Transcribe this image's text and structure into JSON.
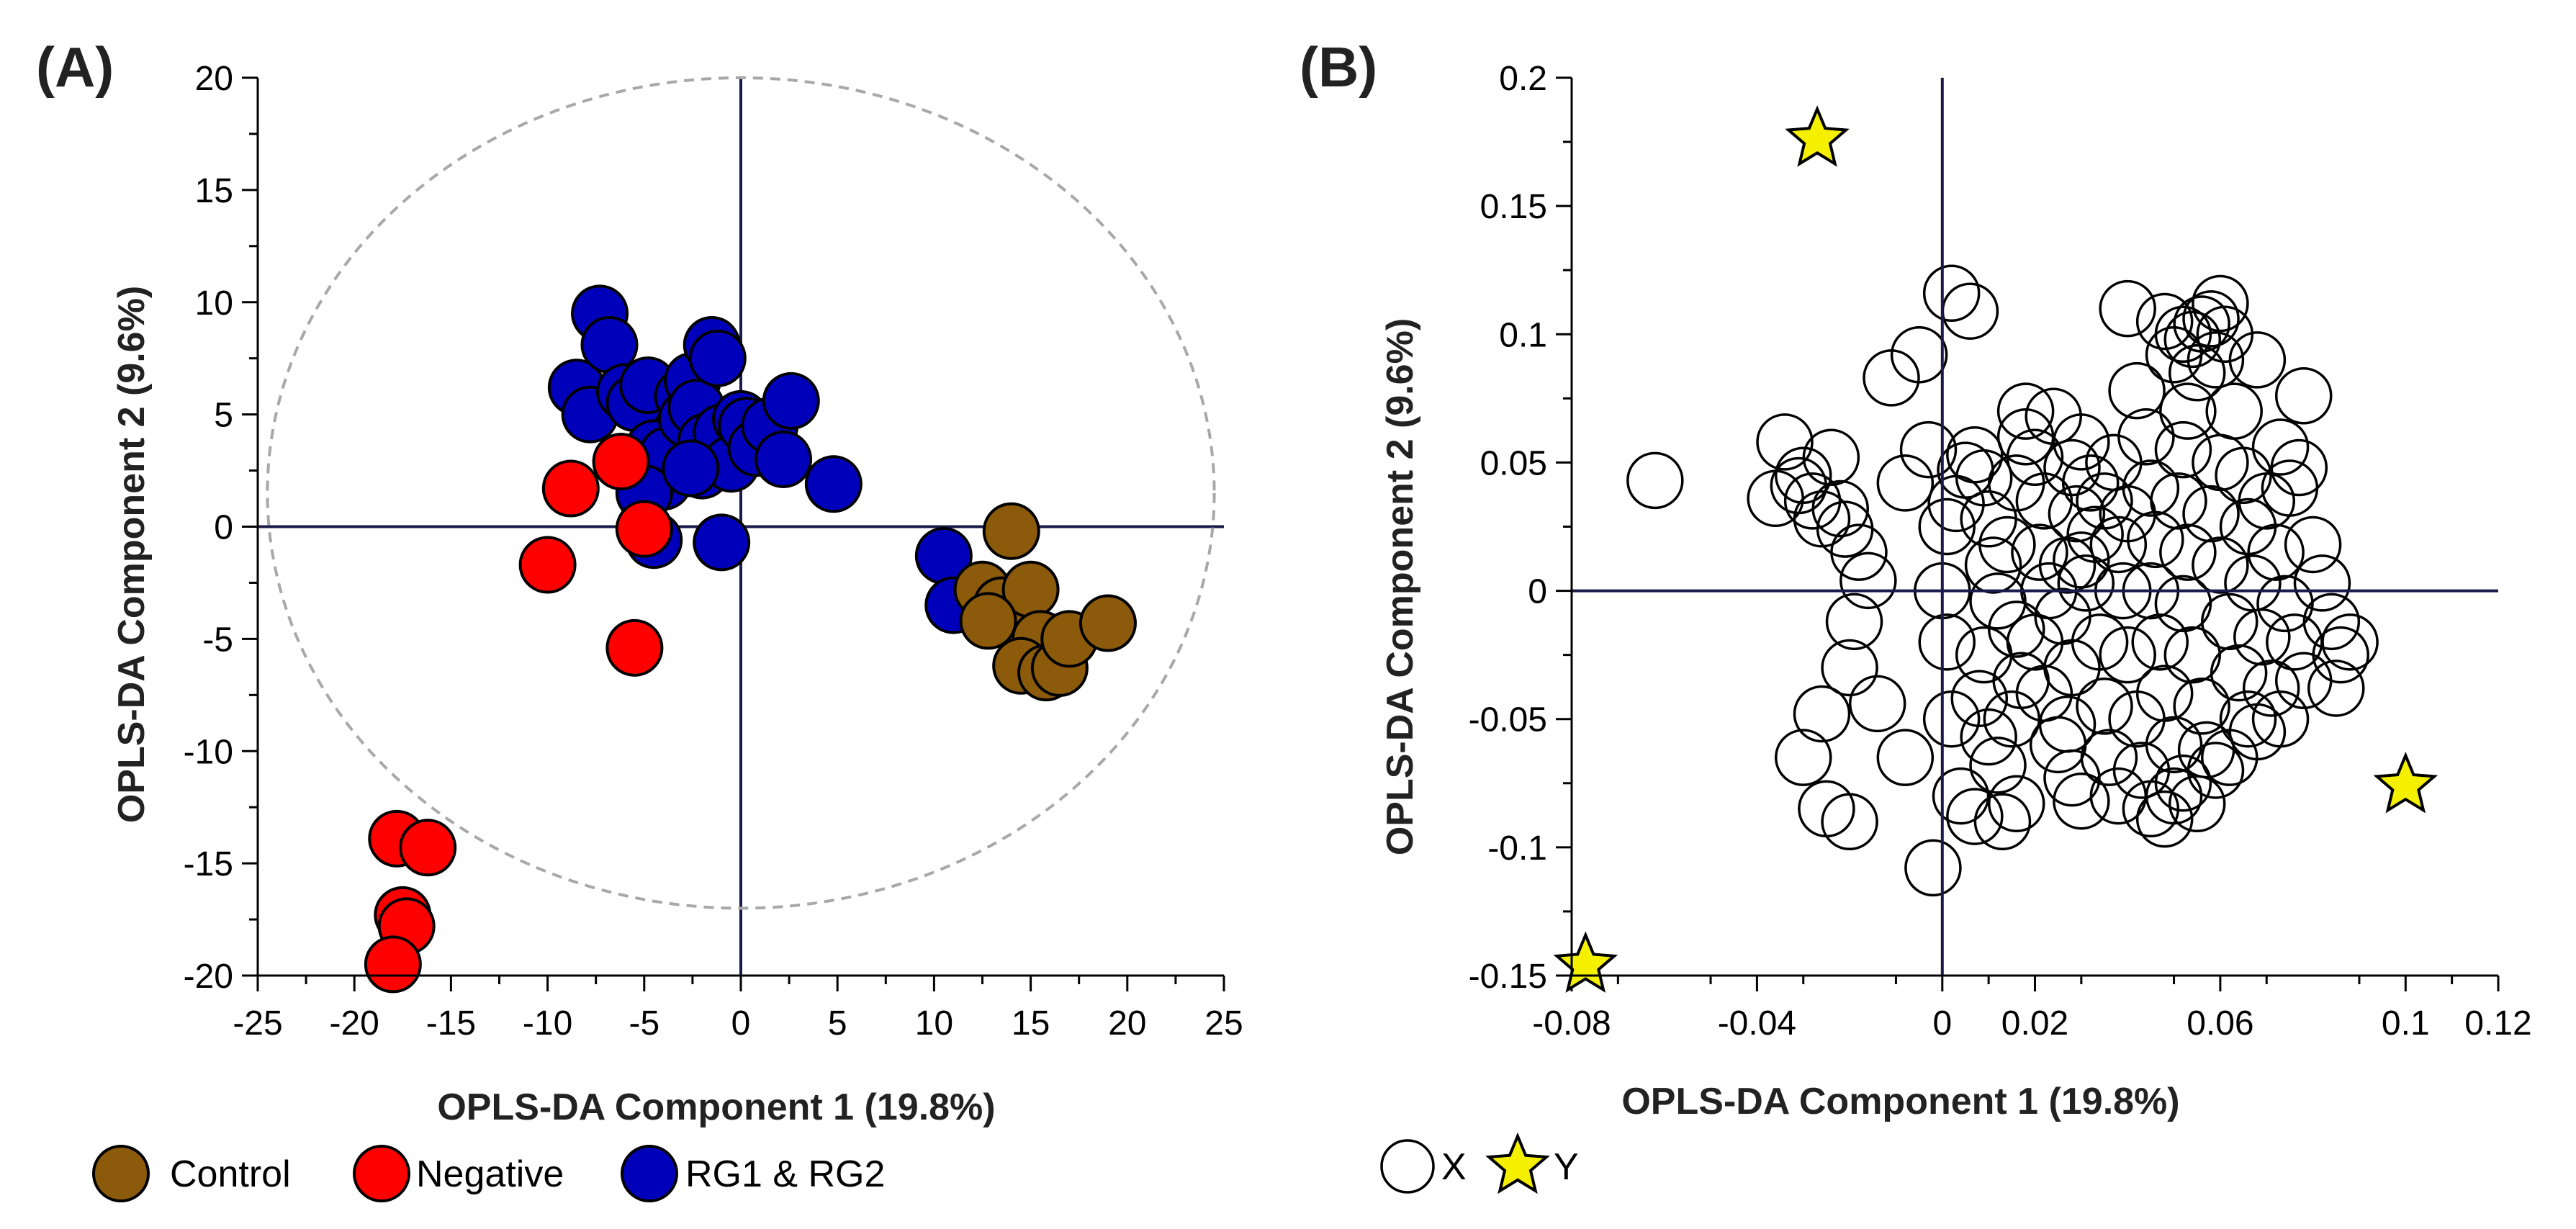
{
  "chart_data": [
    {
      "type": "scatter",
      "panel_label": "(A)",
      "xlabel": "OPLS-DA Component 1 (19.8%)",
      "ylabel": "OPLS-DA Component 2 (9.6%)",
      "xlim": [
        -25,
        25
      ],
      "ylim": [
        -20,
        20
      ],
      "xticks": [
        -25,
        -20,
        -15,
        -10,
        -5,
        0,
        5,
        10,
        15,
        20,
        25
      ],
      "yticks": [
        -20,
        -15,
        -10,
        -5,
        0,
        5,
        10,
        15,
        20
      ],
      "xtick_labels": [
        "-25",
        "-20",
        "-15",
        "-10",
        "-5",
        "0",
        "5",
        "10",
        "15",
        "20",
        "25"
      ],
      "ytick_labels": [
        "-20",
        "-15",
        "-10",
        "-5",
        "0",
        "5",
        "10",
        "15",
        "20"
      ],
      "ellipse": {
        "center": [
          0,
          1.5
        ],
        "rx": 24.5,
        "ry": 18.5
      },
      "legend": [
        {
          "label": "Control",
          "color": "#8b5a0b"
        },
        {
          "label": "Negative",
          "color": "#ff0000"
        },
        {
          "label": "RG1 & RG2",
          "color": "#0000bb"
        }
      ],
      "series": [
        {
          "name": "RG1 & RG2",
          "color": "#0000bb",
          "points": [
            [
              -8.5,
              6.2
            ],
            [
              -7.8,
              5.0
            ],
            [
              -7.3,
              9.5
            ],
            [
              -6.8,
              8.1
            ],
            [
              -6.0,
              6.0
            ],
            [
              -5.5,
              5.5
            ],
            [
              -4.8,
              6.3
            ],
            [
              -4.5,
              3.5
            ],
            [
              -4.0,
              2.0
            ],
            [
              -3.8,
              3.2
            ],
            [
              -3.0,
              5.8
            ],
            [
              -2.8,
              4.8
            ],
            [
              -2.5,
              6.5
            ],
            [
              -2.3,
              5.3
            ],
            [
              -2.0,
              2.5
            ],
            [
              -1.8,
              3.8
            ],
            [
              -1.5,
              8.1
            ],
            [
              -1.2,
              7.5
            ],
            [
              -1.0,
              4.2
            ],
            [
              -0.5,
              2.8
            ],
            [
              0.0,
              4.8
            ],
            [
              0.3,
              4.5
            ],
            [
              0.8,
              3.5
            ],
            [
              1.5,
              4.5
            ],
            [
              2.2,
              3.0
            ],
            [
              2.6,
              5.6
            ],
            [
              4.8,
              1.9
            ],
            [
              -5.0,
              1.5
            ],
            [
              -4.5,
              -0.6
            ],
            [
              -2.6,
              2.6
            ],
            [
              -1.0,
              -0.7
            ],
            [
              10.5,
              -1.3
            ],
            [
              11.0,
              -3.5
            ]
          ]
        },
        {
          "name": "Negative",
          "color": "#ff0000",
          "points": [
            [
              -8.8,
              1.7
            ],
            [
              -6.2,
              2.9
            ],
            [
              -5.0,
              -0.1
            ],
            [
              -10.0,
              -1.7
            ],
            [
              -5.5,
              -5.4
            ],
            [
              -17.8,
              -13.9
            ],
            [
              -16.2,
              -14.3
            ],
            [
              -17.5,
              -17.3
            ],
            [
              -17.3,
              -17.8
            ],
            [
              -18.0,
              -19.5
            ]
          ]
        },
        {
          "name": "Control",
          "color": "#8b5a0b",
          "points": [
            [
              14.0,
              -0.2
            ],
            [
              12.5,
              -2.8
            ],
            [
              13.5,
              -3.5
            ],
            [
              15.0,
              -2.8
            ],
            [
              15.5,
              -5.0
            ],
            [
              14.5,
              -6.2
            ],
            [
              15.8,
              -6.5
            ],
            [
              16.5,
              -6.3
            ],
            [
              17.0,
              -5.0
            ],
            [
              19.0,
              -4.3
            ],
            [
              12.8,
              -4.2
            ]
          ]
        }
      ]
    },
    {
      "type": "scatter",
      "panel_label": "(B)",
      "xlabel": "OPLS-DA Component 1 (19.8%)",
      "ylabel": "OPLS-DA Component 2 (9.6%)",
      "xlim": [
        -0.08,
        0.12
      ],
      "ylim": [
        -0.15,
        0.2
      ],
      "xticks": [
        -0.08,
        -0.04,
        0,
        0.02,
        0.06,
        0.1,
        0.12
      ],
      "xtick_labels": [
        "-0.08",
        "-0.04",
        "0",
        "0.02",
        "0.06",
        "0.1",
        "0.12"
      ],
      "yticks": [
        -0.15,
        -0.1,
        -0.05,
        0,
        0.05,
        0.1,
        0.15,
        0.2
      ],
      "ytick_labels": [
        "-0.15",
        "-0.1",
        "-0.05",
        "0",
        "0.05",
        "0.1",
        "0.15",
        "0.2"
      ],
      "legend": [
        {
          "label": "X",
          "marker": "open-circle"
        },
        {
          "label": "Y",
          "marker": "star",
          "color": "#f5f000"
        }
      ],
      "series": [
        {
          "name": "Y",
          "marker": "star",
          "points": [
            [
              -0.027,
              0.176
            ],
            [
              0.1,
              -0.076
            ],
            [
              -0.077,
              -0.146
            ]
          ]
        },
        {
          "name": "X",
          "marker": "open-circle",
          "points": [
            [
              -0.062,
              0.043
            ],
            [
              0.002,
              0.116
            ],
            [
              0.006,
              0.109
            ],
            [
              -0.005,
              0.092
            ],
            [
              -0.011,
              0.083
            ],
            [
              -0.034,
              0.058
            ],
            [
              -0.03,
              0.045
            ],
            [
              -0.036,
              0.036
            ],
            [
              -0.031,
              0.041
            ],
            [
              -0.028,
              0.035
            ],
            [
              -0.026,
              0.028
            ],
            [
              -0.024,
              0.052
            ],
            [
              -0.021,
              0.024
            ],
            [
              -0.022,
              0.032
            ],
            [
              -0.018,
              0.015
            ],
            [
              -0.016,
              0.004
            ],
            [
              -0.019,
              -0.012
            ],
            [
              -0.02,
              -0.03
            ],
            [
              -0.014,
              -0.044
            ],
            [
              -0.026,
              -0.048
            ],
            [
              -0.03,
              -0.065
            ],
            [
              -0.025,
              -0.085
            ],
            [
              -0.02,
              -0.09
            ],
            [
              -0.008,
              -0.065
            ],
            [
              -0.002,
              -0.108
            ],
            [
              -0.008,
              0.042
            ],
            [
              -0.003,
              0.055
            ],
            [
              0.001,
              0.025
            ],
            [
              0.0,
              0.0
            ],
            [
              0.001,
              -0.02
            ],
            [
              0.002,
              -0.05
            ],
            [
              0.004,
              -0.08
            ],
            [
              0.007,
              -0.088
            ],
            [
              0.013,
              -0.09
            ],
            [
              0.016,
              -0.083
            ],
            [
              0.003,
              0.034
            ],
            [
              0.005,
              0.047
            ],
            [
              0.007,
              0.053
            ],
            [
              0.009,
              0.044
            ],
            [
              0.01,
              0.028
            ],
            [
              0.011,
              0.01
            ],
            [
              0.012,
              -0.004
            ],
            [
              0.009,
              -0.025
            ],
            [
              0.008,
              -0.042
            ],
            [
              0.01,
              -0.057
            ],
            [
              0.012,
              -0.068
            ],
            [
              0.015,
              -0.05
            ],
            [
              0.017,
              -0.035
            ],
            [
              0.016,
              -0.015
            ],
            [
              0.014,
              0.018
            ],
            [
              0.016,
              0.042
            ],
            [
              0.018,
              0.07
            ],
            [
              0.02,
              0.052
            ],
            [
              0.022,
              0.035
            ],
            [
              0.021,
              0.015
            ],
            [
              0.023,
              0.0
            ],
            [
              0.02,
              -0.02
            ],
            [
              0.022,
              -0.04
            ],
            [
              0.025,
              -0.06
            ],
            [
              0.028,
              -0.073
            ],
            [
              0.03,
              -0.082
            ],
            [
              0.027,
              -0.052
            ],
            [
              0.028,
              -0.03
            ],
            [
              0.026,
              -0.01
            ],
            [
              0.027,
              0.01
            ],
            [
              0.029,
              0.03
            ],
            [
              0.028,
              0.048
            ],
            [
              0.03,
              0.058
            ],
            [
              0.032,
              0.042
            ],
            [
              0.033,
              0.022
            ],
            [
              0.031,
              0.003
            ],
            [
              0.034,
              -0.02
            ],
            [
              0.035,
              -0.045
            ],
            [
              0.036,
              -0.065
            ],
            [
              0.038,
              -0.08
            ],
            [
              0.035,
              0.035
            ],
            [
              0.037,
              0.05
            ],
            [
              0.038,
              0.018
            ],
            [
              0.039,
              0.0
            ],
            [
              0.04,
              -0.025
            ],
            [
              0.042,
              -0.05
            ],
            [
              0.043,
              -0.07
            ],
            [
              0.045,
              -0.085
            ],
            [
              0.048,
              -0.089
            ],
            [
              0.05,
              -0.08
            ],
            [
              0.04,
              0.11
            ],
            [
              0.042,
              0.078
            ],
            [
              0.044,
              0.06
            ],
            [
              0.045,
              0.04
            ],
            [
              0.046,
              0.02
            ],
            [
              0.045,
              0.0
            ],
            [
              0.047,
              -0.02
            ],
            [
              0.048,
              -0.04
            ],
            [
              0.05,
              -0.06
            ],
            [
              0.052,
              -0.075
            ],
            [
              0.055,
              -0.083
            ],
            [
              0.048,
              0.105
            ],
            [
              0.05,
              0.092
            ],
            [
              0.052,
              0.1
            ],
            [
              0.054,
              0.098
            ],
            [
              0.056,
              0.104
            ],
            [
              0.058,
              0.106
            ],
            [
              0.06,
              0.112
            ],
            [
              0.061,
              0.1
            ],
            [
              0.059,
              0.09
            ],
            [
              0.055,
              0.085
            ],
            [
              0.053,
              0.07
            ],
            [
              0.052,
              0.055
            ],
            [
              0.051,
              0.035
            ],
            [
              0.053,
              0.015
            ],
            [
              0.052,
              -0.005
            ],
            [
              0.054,
              -0.025
            ],
            [
              0.056,
              -0.045
            ],
            [
              0.057,
              -0.062
            ],
            [
              0.059,
              -0.07
            ],
            [
              0.062,
              -0.065
            ],
            [
              0.058,
              0.03
            ],
            [
              0.06,
              0.05
            ],
            [
              0.06,
              0.01
            ],
            [
              0.062,
              -0.012
            ],
            [
              0.064,
              -0.032
            ],
            [
              0.066,
              -0.05
            ],
            [
              0.068,
              -0.055
            ],
            [
              0.063,
              0.07
            ],
            [
              0.065,
              0.045
            ],
            [
              0.066,
              0.025
            ],
            [
              0.067,
              0.003
            ],
            [
              0.069,
              -0.018
            ],
            [
              0.071,
              -0.038
            ],
            [
              0.073,
              -0.05
            ],
            [
              0.07,
              0.035
            ],
            [
              0.072,
              0.015
            ],
            [
              0.074,
              -0.005
            ],
            [
              0.076,
              -0.02
            ],
            [
              0.078,
              -0.035
            ],
            [
              0.068,
              0.09
            ],
            [
              0.073,
              0.056
            ],
            [
              0.075,
              0.04
            ],
            [
              0.077,
              0.048
            ],
            [
              0.08,
              0.018
            ],
            [
              0.082,
              0.003
            ],
            [
              0.084,
              -0.012
            ],
            [
              0.086,
              -0.025
            ],
            [
              0.085,
              -0.038
            ],
            [
              0.088,
              -0.02
            ],
            [
              0.078,
              0.076
            ],
            [
              0.024,
              0.068
            ],
            [
              0.018,
              0.06
            ],
            [
              0.03,
              0.012
            ],
            [
              0.04,
              0.03
            ]
          ]
        }
      ]
    }
  ]
}
